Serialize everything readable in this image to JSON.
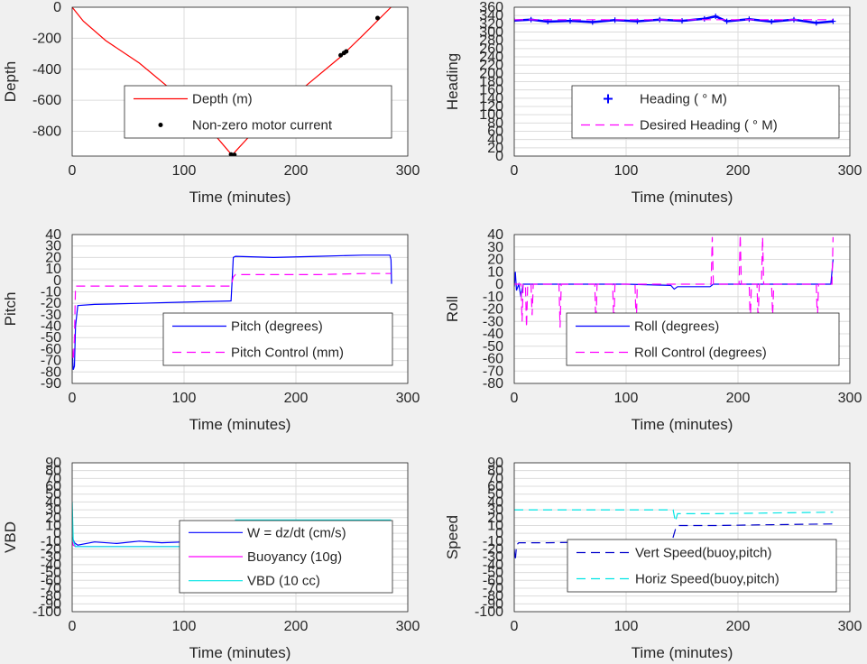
{
  "charts": [
    {
      "id": "depth",
      "type": "line",
      "ylabel": "Depth",
      "xlabel": "Time (minutes)",
      "xlim": [
        0,
        300
      ],
      "ylim": [
        -960,
        0
      ],
      "xticks": [
        0,
        100,
        200,
        300
      ],
      "yticks": [
        0,
        -200,
        -400,
        -600,
        -800
      ],
      "grid": true,
      "legend_position": "center-right",
      "series": [
        {
          "name": "Depth (m)",
          "color": "#ff0000",
          "style": "solid",
          "marker": "none",
          "x": [
            0,
            10,
            30,
            60,
            90,
            120,
            140,
            143,
            146,
            160,
            190,
            210,
            240,
            260,
            285
          ],
          "y": [
            0,
            -90,
            -215,
            -360,
            -540,
            -760,
            -930,
            -957,
            -930,
            -820,
            -620,
            -500,
            -320,
            -180,
            0
          ]
        },
        {
          "name": "Non-zero motor current",
          "color": "#000000",
          "style": "none",
          "marker": "dot",
          "x": [
            142,
            143,
            144,
            145,
            240,
            243,
            245,
            273
          ],
          "y": [
            -950,
            -955,
            -955,
            -952,
            -310,
            -295,
            -285,
            -70
          ]
        }
      ]
    },
    {
      "id": "heading",
      "type": "line",
      "ylabel": "Heading",
      "xlabel": "Time (minutes)",
      "xlim": [
        0,
        300
      ],
      "ylim": [
        0,
        360
      ],
      "xticks": [
        0,
        100,
        200,
        300
      ],
      "yticks": [
        0,
        20,
        40,
        60,
        80,
        100,
        120,
        140,
        160,
        180,
        200,
        220,
        240,
        260,
        280,
        300,
        320,
        340,
        360
      ],
      "grid": true,
      "legend_position": "center-right",
      "series": [
        {
          "name": "Heading ( ° M)",
          "color": "#0000ff",
          "style": "solid",
          "marker": "plus",
          "x": [
            0,
            15,
            30,
            50,
            70,
            90,
            110,
            130,
            150,
            170,
            180,
            190,
            210,
            230,
            250,
            270,
            285
          ],
          "y": [
            328,
            330,
            325,
            327,
            324,
            329,
            326,
            330,
            327,
            332,
            338,
            326,
            331,
            325,
            330,
            322,
            326
          ]
        },
        {
          "name": "Desired Heading ( ° M)",
          "color": "#ff00ff",
          "style": "dashed",
          "marker": "none",
          "x": [
            0,
            285
          ],
          "y": [
            330,
            330
          ]
        }
      ]
    },
    {
      "id": "pitch",
      "type": "line",
      "ylabel": "Pitch",
      "xlabel": "Time (minutes)",
      "xlim": [
        0,
        300
      ],
      "ylim": [
        -90,
        40
      ],
      "xticks": [
        0,
        100,
        200,
        300
      ],
      "yticks": [
        40,
        30,
        20,
        10,
        0,
        -10,
        -20,
        -30,
        -40,
        -50,
        -60,
        -70,
        -80,
        -90
      ],
      "grid": true,
      "legend_position": "lower-right",
      "series": [
        {
          "name": "Pitch (degrees)",
          "color": "#0000ff",
          "style": "solid",
          "marker": "none",
          "x": [
            0,
            1,
            2,
            3,
            5,
            20,
            60,
            100,
            142,
            143,
            144,
            146,
            180,
            220,
            260,
            284,
            285,
            285.5
          ],
          "y": [
            -60,
            -78,
            -75,
            -40,
            -22,
            -21,
            -20,
            -19,
            -18,
            0,
            20,
            21,
            20,
            21,
            22,
            22,
            18,
            -3
          ]
        },
        {
          "name": "Pitch Control (mm)",
          "color": "#ff00ff",
          "style": "dashed",
          "marker": "none",
          "x": [
            0,
            1,
            2,
            3,
            140,
            142,
            144,
            146,
            180,
            220,
            260,
            285
          ],
          "y": [
            -60,
            -70,
            -50,
            -5,
            -5,
            -5,
            3,
            5,
            5,
            5,
            6,
            6
          ]
        }
      ]
    },
    {
      "id": "roll",
      "type": "line",
      "ylabel": "Roll",
      "xlabel": "Time (minutes)",
      "xlim": [
        0,
        300
      ],
      "ylim": [
        -80,
        40
      ],
      "xticks": [
        0,
        100,
        200,
        300
      ],
      "yticks": [
        40,
        30,
        20,
        10,
        0,
        -10,
        -20,
        -30,
        -40,
        -50,
        -60,
        -70,
        -80
      ],
      "grid": true,
      "legend_position": "lower-right",
      "series": [
        {
          "name": "Roll (degrees)",
          "color": "#0000ff",
          "style": "solid",
          "marker": "none",
          "x": [
            0,
            1,
            2,
            4,
            6,
            8,
            10,
            30,
            60,
            100,
            140,
            143,
            146,
            175,
            178,
            200,
            240,
            270,
            283,
            285
          ],
          "y": [
            -2,
            10,
            -5,
            0,
            -10,
            0,
            0,
            0,
            0,
            0,
            -1,
            -4,
            -2,
            -2,
            0,
            0,
            0,
            0,
            0,
            20
          ]
        },
        {
          "name": "Roll Control (degrees)",
          "color": "#ff00ff",
          "style": "dashed",
          "marker": "none",
          "x": [
            0,
            6,
            7,
            8,
            10,
            11,
            12,
            15,
            16,
            17,
            40,
            41,
            42,
            72,
            73,
            74,
            88,
            89,
            90,
            108,
            109,
            110,
            176,
            177,
            178,
            201,
            202,
            203,
            210,
            211,
            212,
            217,
            218,
            219,
            221,
            222,
            223,
            230,
            231,
            232,
            270,
            271,
            272,
            284,
            285
          ],
          "y": [
            0,
            0,
            -30,
            0,
            0,
            -35,
            0,
            0,
            -25,
            0,
            0,
            -35,
            0,
            0,
            -35,
            0,
            0,
            -35,
            0,
            0,
            -35,
            0,
            0,
            38,
            0,
            0,
            40,
            0,
            0,
            -30,
            0,
            0,
            -30,
            0,
            0,
            38,
            0,
            0,
            -25,
            0,
            0,
            -30,
            0,
            0,
            38
          ]
        }
      ]
    },
    {
      "id": "vbd",
      "type": "line",
      "ylabel": "VBD",
      "xlabel": "Time (minutes)",
      "xlim": [
        0,
        300
      ],
      "ylim": [
        -100,
        90
      ],
      "xticks": [
        0,
        100,
        200,
        300
      ],
      "yticks": [
        90,
        80,
        70,
        60,
        50,
        40,
        30,
        20,
        10,
        0,
        -10,
        -20,
        -30,
        -40,
        -50,
        -60,
        -70,
        -80,
        -90,
        -100
      ],
      "grid": true,
      "legend_position": "lower-right",
      "series": [
        {
          "name": "W = dz/dt (cm/s)",
          "color": "#0000ff",
          "style": "solid",
          "marker": "none",
          "x": [
            0,
            2,
            5,
            20,
            40,
            60,
            80,
            100,
            120,
            140,
            143,
            146,
            150,
            180,
            210,
            240,
            270,
            285
          ],
          "y": [
            -5,
            -12,
            -15,
            -11,
            -13,
            -10,
            -12,
            -11,
            -12,
            -11,
            0,
            10,
            12,
            11,
            12,
            10,
            11,
            11
          ]
        },
        {
          "name": "Buoyancy (10g)",
          "color": "#ff00ff",
          "style": "solid",
          "marker": "none",
          "x": [
            0,
            1,
            3,
            140,
            142,
            144,
            146,
            285
          ],
          "y": [
            -10,
            -15,
            -17,
            -17,
            -17,
            5,
            15,
            15
          ]
        },
        {
          "name": "VBD (10 cc)",
          "color": "#00e5e5",
          "style": "solid",
          "marker": "none",
          "x": [
            0,
            1,
            3,
            140,
            142,
            144,
            146,
            285
          ],
          "y": [
            40,
            -10,
            -17,
            -17,
            -17,
            5,
            17,
            17
          ]
        }
      ]
    },
    {
      "id": "speed",
      "type": "line",
      "ylabel": "Speed",
      "xlabel": "Time (minutes)",
      "xlim": [
        0,
        300
      ],
      "ylim": [
        -100,
        90
      ],
      "xticks": [
        0,
        100,
        200,
        300
      ],
      "yticks": [
        90,
        80,
        70,
        60,
        50,
        40,
        30,
        20,
        10,
        0,
        -10,
        -20,
        -30,
        -40,
        -50,
        -60,
        -70,
        -80,
        -90,
        -100
      ],
      "grid": true,
      "legend_position": "lower-right",
      "series": [
        {
          "name": "Vert Speed(buoy,pitch)",
          "color": "#0000cc",
          "style": "dashed",
          "marker": "none",
          "x": [
            0,
            1,
            2,
            4,
            30,
            80,
            140,
            142,
            144,
            146,
            180,
            230,
            285
          ],
          "y": [
            -20,
            -35,
            -15,
            -12,
            -12,
            -11,
            -11,
            -5,
            5,
            10,
            10,
            11,
            12
          ]
        },
        {
          "name": "Horiz Speed(buoy,pitch)",
          "color": "#00e5e5",
          "style": "dashed",
          "marker": "none",
          "x": [
            0,
            2,
            30,
            80,
            140,
            142,
            144,
            146,
            180,
            230,
            285
          ],
          "y": [
            30,
            30,
            30,
            30,
            30,
            30,
            15,
            25,
            25,
            26,
            27
          ]
        }
      ]
    }
  ]
}
